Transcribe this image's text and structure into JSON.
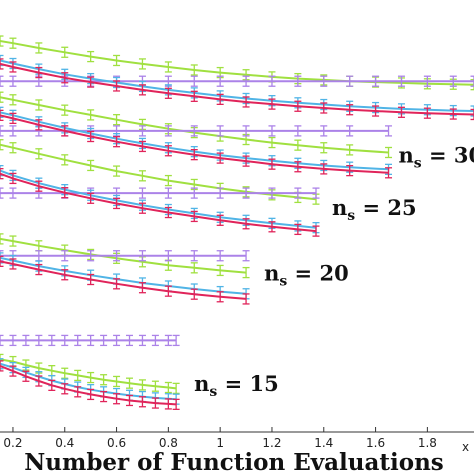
{
  "chart_data": {
    "type": "line",
    "title": "",
    "xlabel": "Number of Function Evaluations",
    "x_multiplier_label": "x",
    "ylabel": "",
    "xlim": [
      0.15,
      1.98
    ],
    "ylim": [
      0,
      1
    ],
    "grid": false,
    "legend": "none",
    "x_ticks": [
      0.2,
      0.4,
      0.6,
      0.8,
      1,
      1.2,
      1.4,
      1.6,
      1.8
    ],
    "x_tick_labels": [
      "0.2",
      "0.4",
      "0.6",
      "0.8",
      "1",
      "1.2",
      "1.4",
      "1.6",
      "1.8"
    ],
    "series_colors": [
      "#a0e040",
      "#ab82e8",
      "#50b4e6",
      "#e0245a"
    ],
    "groups": [
      {
        "label_n": "n",
        "label_sub": "s",
        "label_value": " = 15",
        "x": [
          0.15,
          0.2,
          0.25,
          0.3,
          0.35,
          0.4,
          0.45,
          0.5,
          0.55,
          0.6,
          0.65,
          0.7,
          0.75,
          0.8,
          0.83
        ],
        "series": [
          {
            "values": [
              0.168,
              0.163,
              0.155,
              0.148,
              0.142,
              0.136,
              0.131,
              0.126,
              0.121,
              0.117,
              0.113,
              0.109,
              0.106,
              0.103,
              0.101
            ]
          },
          {
            "values": [
              0.212,
              0.212,
              0.212,
              0.212,
              0.212,
              0.212,
              0.212,
              0.212,
              0.212,
              0.212,
              0.212,
              0.212,
              0.212,
              0.212,
              0.212
            ]
          },
          {
            "values": [
              0.158,
              0.149,
              0.138,
              0.128,
              0.119,
              0.111,
              0.104,
              0.098,
              0.093,
              0.089,
              0.085,
              0.082,
              0.079,
              0.077,
              0.076
            ]
          },
          {
            "values": [
              0.153,
              0.141,
              0.129,
              0.118,
              0.108,
              0.1,
              0.093,
              0.087,
              0.082,
              0.077,
              0.073,
              0.07,
              0.067,
              0.065,
              0.064
            ]
          }
        ]
      },
      {
        "label_n": "n",
        "label_sub": "s",
        "label_value": " = 20",
        "x": [
          0.15,
          0.2,
          0.3,
          0.4,
          0.5,
          0.6,
          0.7,
          0.8,
          0.9,
          1.0,
          1.1
        ],
        "series": [
          {
            "values": [
              0.447,
              0.442,
              0.431,
              0.421,
              0.411,
              0.402,
              0.394,
              0.386,
              0.38,
              0.374,
              0.369
            ]
          },
          {
            "values": [
              0.408,
              0.408,
              0.408,
              0.408,
              0.408,
              0.408,
              0.408,
              0.408,
              0.408,
              0.408,
              0.408
            ]
          },
          {
            "values": [
              0.403,
              0.397,
              0.384,
              0.373,
              0.363,
              0.354,
              0.345,
              0.338,
              0.331,
              0.325,
              0.32
            ]
          },
          {
            "values": [
              0.395,
              0.389,
              0.376,
              0.364,
              0.353,
              0.343,
              0.334,
              0.326,
              0.319,
              0.313,
              0.308
            ]
          }
        ]
      },
      {
        "label_n": "n",
        "label_sub": "s",
        "label_value": " = 25",
        "x": [
          0.15,
          0.2,
          0.3,
          0.4,
          0.5,
          0.6,
          0.7,
          0.8,
          0.9,
          1.0,
          1.1,
          1.2,
          1.3,
          1.37
        ],
        "series": [
          {
            "values": [
              0.665,
              0.658,
              0.644,
              0.63,
              0.617,
              0.604,
              0.593,
              0.582,
              0.573,
              0.564,
              0.556,
              0.549,
              0.543,
              0.539
            ]
          },
          {
            "values": [
              0.553,
              0.553,
              0.553,
              0.553,
              0.553,
              0.553,
              0.553,
              0.553,
              0.553,
              0.553,
              0.553,
              0.553,
              0.553,
              0.553
            ]
          },
          {
            "values": [
              0.605,
              0.594,
              0.576,
              0.561,
              0.548,
              0.536,
              0.525,
              0.515,
              0.506,
              0.497,
              0.49,
              0.483,
              0.477,
              0.473
            ]
          },
          {
            "values": [
              0.598,
              0.587,
              0.569,
              0.554,
              0.541,
              0.529,
              0.518,
              0.508,
              0.499,
              0.49,
              0.482,
              0.475,
              0.469,
              0.465
            ]
          }
        ]
      },
      {
        "label_n": "n",
        "label_sub": "s",
        "label_value": " = 30",
        "x": [
          0.15,
          0.2,
          0.3,
          0.4,
          0.5,
          0.6,
          0.7,
          0.8,
          0.9,
          1.0,
          1.1,
          1.2,
          1.3,
          1.4,
          1.5,
          1.65
        ],
        "series": [
          {
            "values": [
              0.775,
              0.769,
              0.757,
              0.745,
              0.734,
              0.723,
              0.712,
              0.702,
              0.693,
              0.685,
              0.677,
              0.67,
              0.664,
              0.658,
              0.653,
              0.647
            ]
          },
          {
            "values": [
              0.697,
              0.697,
              0.697,
              0.697,
              0.697,
              0.697,
              0.697,
              0.697,
              0.697,
              0.697,
              0.697,
              0.697,
              0.697,
              0.697,
              0.697,
              0.697
            ]
          },
          {
            "values": [
              0.74,
              0.733,
              0.718,
              0.704,
              0.691,
              0.679,
              0.668,
              0.658,
              0.649,
              0.641,
              0.634,
              0.628,
              0.622,
              0.617,
              0.613,
              0.608
            ]
          },
          {
            "values": [
              0.733,
              0.726,
              0.711,
              0.697,
              0.684,
              0.672,
              0.661,
              0.651,
              0.642,
              0.634,
              0.627,
              0.62,
              0.614,
              0.609,
              0.605,
              0.6
            ]
          }
        ]
      },
      {
        "label_n": "",
        "label_sub": "",
        "label_value": "",
        "x": [
          0.15,
          0.2,
          0.3,
          0.4,
          0.5,
          0.6,
          0.7,
          0.8,
          0.9,
          1.0,
          1.1,
          1.2,
          1.3,
          1.4,
          1.5,
          1.6,
          1.7,
          1.8,
          1.9,
          1.98
        ],
        "series": [
          {
            "values": [
              0.905,
              0.9,
              0.889,
              0.879,
              0.869,
              0.86,
              0.852,
              0.845,
              0.838,
              0.832,
              0.827,
              0.822,
              0.818,
              0.815,
              0.812,
              0.81,
              0.808,
              0.806,
              0.805,
              0.804
            ]
          },
          {
            "values": [
              0.812,
              0.812,
              0.812,
              0.812,
              0.812,
              0.812,
              0.812,
              0.812,
              0.812,
              0.812,
              0.812,
              0.812,
              0.812,
              0.812,
              0.812,
              0.812,
              0.812,
              0.812,
              0.812,
              0.812
            ]
          },
          {
            "values": [
              0.86,
              0.853,
              0.84,
              0.828,
              0.818,
              0.809,
              0.8,
              0.792,
              0.785,
              0.778,
              0.772,
              0.767,
              0.762,
              0.758,
              0.754,
              0.751,
              0.748,
              0.746,
              0.744,
              0.743
            ]
          },
          {
            "values": [
              0.852,
              0.845,
              0.832,
              0.82,
              0.81,
              0.801,
              0.792,
              0.784,
              0.777,
              0.77,
              0.764,
              0.759,
              0.754,
              0.75,
              0.746,
              0.743,
              0.74,
              0.738,
              0.736,
              0.735
            ]
          }
        ]
      }
    ]
  }
}
